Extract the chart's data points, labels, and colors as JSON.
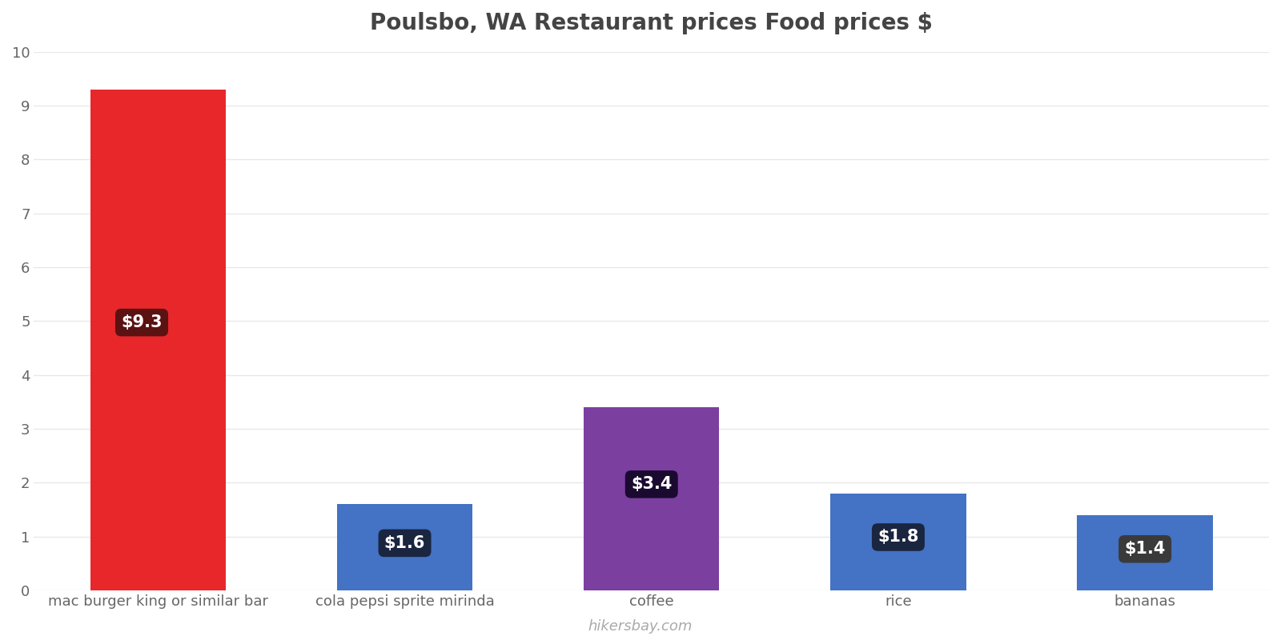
{
  "title": "Poulsbo, WA Restaurant prices Food prices $",
  "categories": [
    "mac burger king or similar bar",
    "cola pepsi sprite mirinda",
    "coffee",
    "rice",
    "bananas"
  ],
  "values": [
    9.3,
    1.6,
    3.4,
    1.8,
    1.4
  ],
  "bar_colors": [
    "#e8272b",
    "#4472c4",
    "#7b3fa0",
    "#4472c4",
    "#4472c4"
  ],
  "label_texts": [
    "$9.3",
    "$1.6",
    "$3.4",
    "$1.8",
    "$1.4"
  ],
  "label_bg_colors": [
    "#5a1212",
    "#1a2540",
    "#1a0a30",
    "#1a2540",
    "#3a3a3a"
  ],
  "ylim": [
    0,
    10
  ],
  "yticks": [
    0,
    1,
    2,
    3,
    4,
    5,
    6,
    7,
    8,
    9,
    10
  ],
  "background_color": "#ffffff",
  "grid_color": "#e8e8e8",
  "title_fontsize": 20,
  "tick_fontsize": 13,
  "label_fontsize": 15,
  "watermark": "hikersbay.com",
  "watermark_color": "#aaaaaa",
  "bar_width": 0.55
}
